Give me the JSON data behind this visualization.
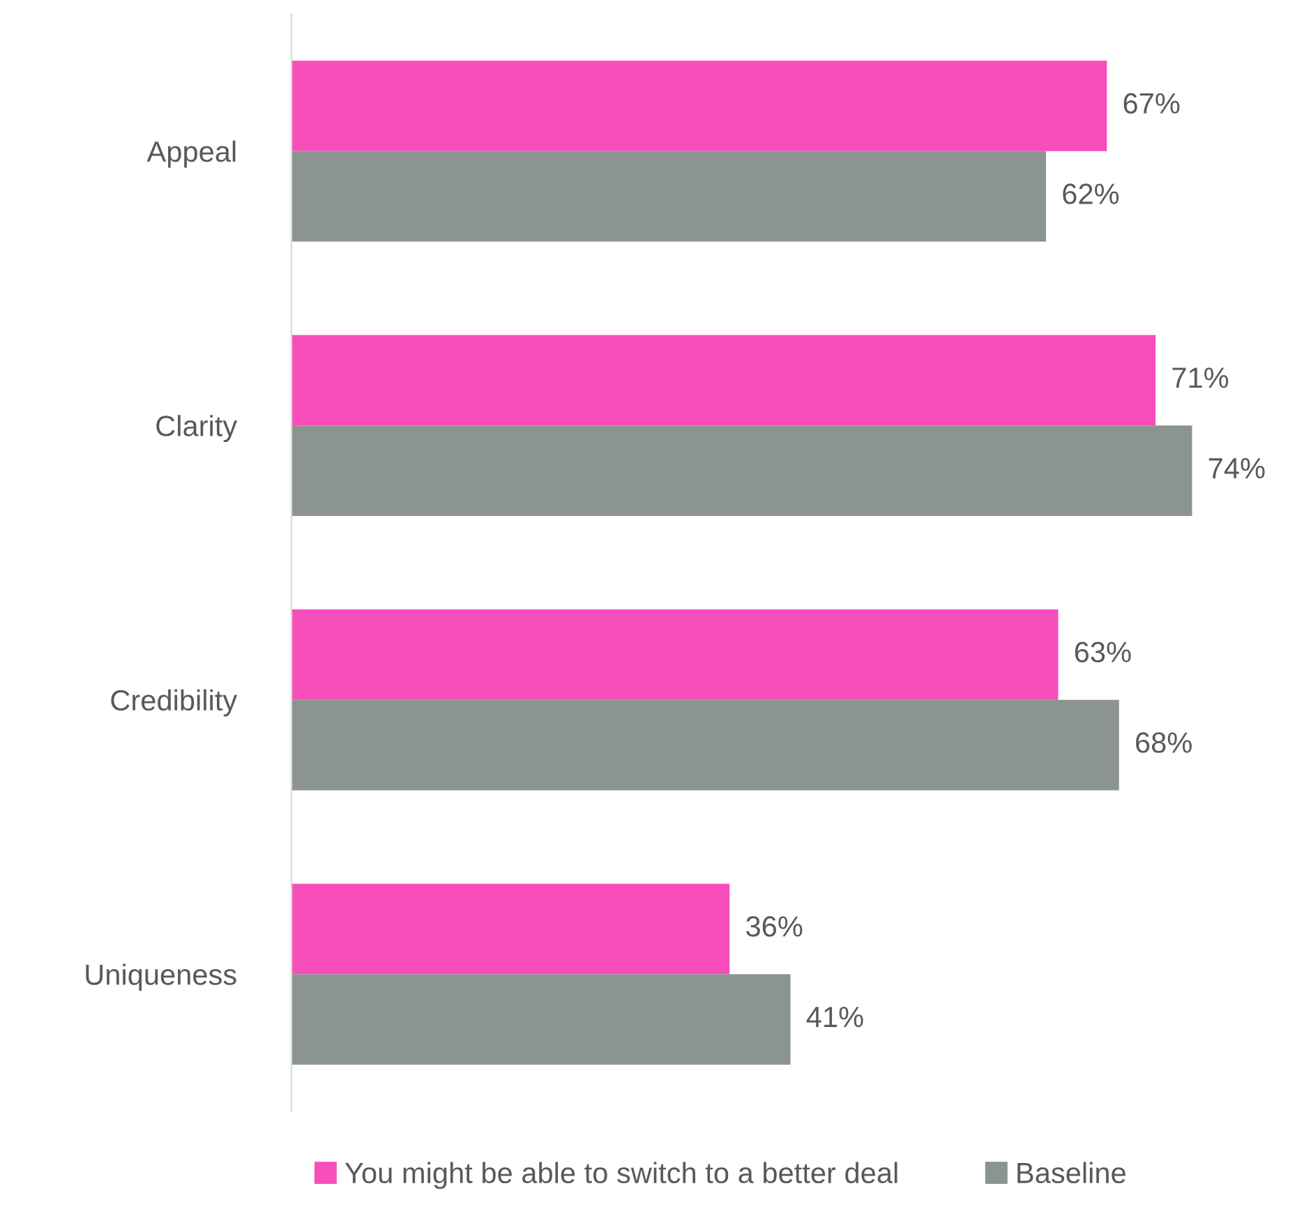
{
  "chart_data": {
    "type": "bar",
    "orientation": "horizontal",
    "categories": [
      "Appeal",
      "Clarity",
      "Credibility",
      "Uniqueness"
    ],
    "series": [
      {
        "name": "You might be able to switch to a better deal",
        "color": "#f74ebc",
        "values": [
          67,
          71,
          63,
          36
        ],
        "value_labels": [
          "67%",
          "71%",
          "63%",
          "36%"
        ]
      },
      {
        "name": "Baseline",
        "color": "#8c9490",
        "values": [
          62,
          74,
          68,
          41
        ],
        "value_labels": [
          "62%",
          "74%",
          "68%",
          "41%"
        ]
      }
    ],
    "tick_labels": "y",
    "legend": "bottom"
  }
}
